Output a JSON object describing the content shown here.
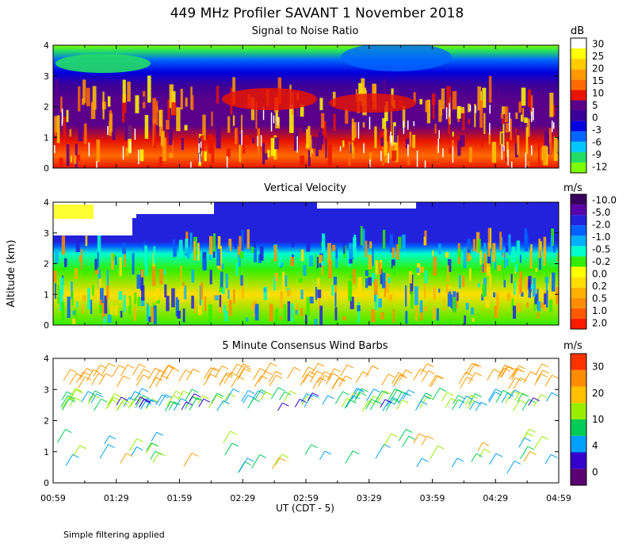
{
  "title": "449 MHz Profiler SAVANT  1 November 2018",
  "ylabel": "Altitude (km)",
  "xlabel": "UT  (CDT - 5)",
  "footer": "Simple filtering applied",
  "x_ticks": [
    "00:59",
    "01:29",
    "01:59",
    "02:29",
    "02:59",
    "03:29",
    "03:59",
    "04:29",
    "04:59"
  ],
  "chart_data": [
    {
      "type": "heatmap",
      "title": "Signal to Noise Ratio",
      "unit": "dB",
      "xlim": [
        "00:59",
        "04:59"
      ],
      "ylim": [
        0,
        4
      ],
      "y_ticks": [
        "0",
        "1",
        "2",
        "3",
        "4"
      ],
      "colorbar": {
        "colors": [
          "#7cfc00",
          "#22dd66",
          "#00c8ff",
          "#0066ff",
          "#0000e0",
          "#3a0099",
          "#5a008a",
          "#e81400",
          "#ff6a00",
          "#ff9a00",
          "#ffcc00",
          "#ffff00",
          "#ffffff"
        ],
        "labels": [
          "-12",
          "-9",
          "-6",
          "-3",
          "0",
          "5",
          "10",
          "15",
          "20",
          "25",
          "30"
        ]
      },
      "profile": [
        {
          "altitude_km": 0.2,
          "snr_db": 17
        },
        {
          "altitude_km": 0.6,
          "snr_db": 14
        },
        {
          "altitude_km": 1.0,
          "snr_db": 11
        },
        {
          "altitude_km": 1.5,
          "snr_db": 6
        },
        {
          "altitude_km": 2.2,
          "snr_db": 3
        },
        {
          "altitude_km": 2.8,
          "snr_db": -2
        },
        {
          "altitude_km": 3.3,
          "snr_db": -5
        },
        {
          "altitude_km": 3.8,
          "snr_db": -9
        }
      ]
    },
    {
      "type": "heatmap",
      "title": "Vertical Velocity",
      "unit": "m/s",
      "xlim": [
        "00:59",
        "04:59"
      ],
      "ylim": [
        0,
        4
      ],
      "y_ticks": [
        "0",
        "1",
        "2",
        "3",
        "4"
      ],
      "colorbar": {
        "colors": [
          "#ff1a00",
          "#ff5a00",
          "#ff8c00",
          "#ffb000",
          "#ffdd00",
          "#ffff00",
          "#33ee00",
          "#00ffcc",
          "#00b0ff",
          "#0060ff",
          "#2222dd",
          "#5a00aa",
          "#3a0060"
        ],
        "labels": [
          "2.0",
          "1.0",
          "0.5",
          "0.2",
          "0.0",
          "-0.2",
          "-0.5",
          "-1.0",
          "-2.0",
          "-5.0",
          "-10.0"
        ]
      },
      "regions": [
        {
          "altitude_km": [
            0.0,
            2.6
          ],
          "velocity_ms": "-0.5 to 0.5 (mixed)"
        },
        {
          "altitude_km": [
            2.6,
            3.9
          ],
          "velocity_ms": "-5.0 (downward)"
        }
      ]
    },
    {
      "type": "wind_barbs",
      "title": "5 Minute Consensus Wind Barbs",
      "unit": "m/s",
      "xlim": [
        "00:59",
        "04:59"
      ],
      "ylim": [
        0,
        4
      ],
      "y_ticks": [
        "0",
        "1",
        "2",
        "3",
        "4"
      ],
      "colorbar": {
        "colors": [
          "#5a0070",
          "#3300cc",
          "#00a0ff",
          "#00cc55",
          "#99ee00",
          "#ffc000",
          "#ff8c00",
          "#ff3300"
        ],
        "labels": [
          "0",
          "4",
          "10",
          "20",
          "30"
        ]
      },
      "levels": [
        {
          "altitude_km": 3.2,
          "speed_ms": 22
        },
        {
          "altitude_km": 2.6,
          "speed_ms": 14
        },
        {
          "altitude_km": 2.2,
          "speed_ms": 9
        },
        {
          "altitude_km": 1.0,
          "speed_ms": 10
        },
        {
          "altitude_km": 0.5,
          "speed_ms": 8
        }
      ]
    }
  ]
}
